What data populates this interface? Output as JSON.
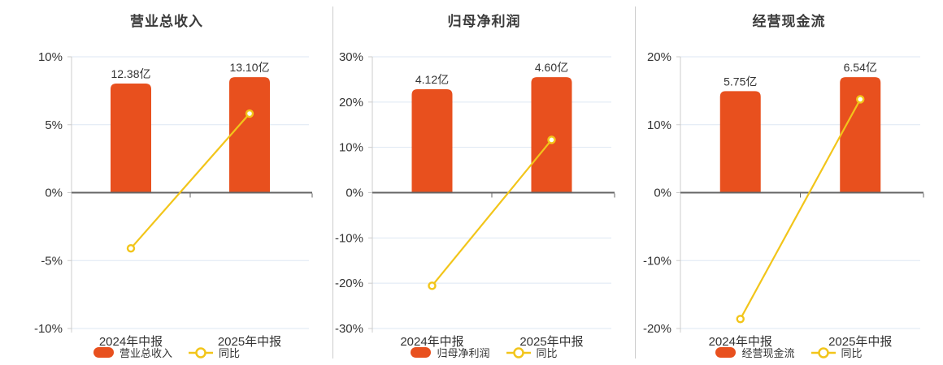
{
  "colors": {
    "bar": "#e8501e",
    "line": "#f2c51a",
    "marker_fill": "#ffffff",
    "grid_line": "#dde7f3",
    "zero_line": "#666666",
    "axis_line": "#cccccc",
    "axis_label": "#333333",
    "value_label": "#333333",
    "title": "#3b3b3b",
    "background": "#ffffff"
  },
  "chart_data": [
    {
      "type": "bar+line",
      "title": "营业总收入",
      "categories": [
        "2024年中报",
        "2025年中报"
      ],
      "bar_series": {
        "name": "营业总收入",
        "values": [
          12.38,
          13.1
        ],
        "labels": [
          "12.38亿",
          "13.10亿"
        ],
        "unit": "亿"
      },
      "line_series": {
        "name": "同比",
        "values_pct": [
          -4.1,
          5.82
        ]
      },
      "y_axis": {
        "max": 10,
        "min": -10,
        "step": 5,
        "tick_suffix": "%"
      },
      "legend": [
        "营业总收入",
        "同比"
      ],
      "grid": true,
      "legend_position": "bottom"
    },
    {
      "type": "bar+line",
      "title": "归母净利润",
      "categories": [
        "2024年中报",
        "2025年中报"
      ],
      "bar_series": {
        "name": "归母净利润",
        "values": [
          4.12,
          4.6
        ],
        "labels": [
          "4.12亿",
          "4.60亿"
        ],
        "unit": "亿"
      },
      "line_series": {
        "name": "同比",
        "values_pct": [
          -20.57,
          11.65
        ]
      },
      "y_axis": {
        "max": 30,
        "min": -30,
        "step": 10,
        "tick_suffix": "%"
      },
      "legend": [
        "归母净利润",
        "同比"
      ],
      "grid": true,
      "legend_position": "bottom"
    },
    {
      "type": "bar+line",
      "title": "经营现金流",
      "categories": [
        "2024年中报",
        "2025年中报"
      ],
      "bar_series": {
        "name": "经营现金流",
        "values": [
          5.75,
          6.54
        ],
        "labels": [
          "5.75亿",
          "6.54亿"
        ],
        "unit": "亿"
      },
      "line_series": {
        "name": "同比",
        "values_pct": [
          -18.6,
          13.74
        ]
      },
      "y_axis": {
        "max": 20,
        "min": -20,
        "step": 10,
        "tick_suffix": "%"
      },
      "legend": [
        "经营现金流",
        "同比"
      ],
      "grid": true,
      "legend_position": "bottom"
    }
  ]
}
